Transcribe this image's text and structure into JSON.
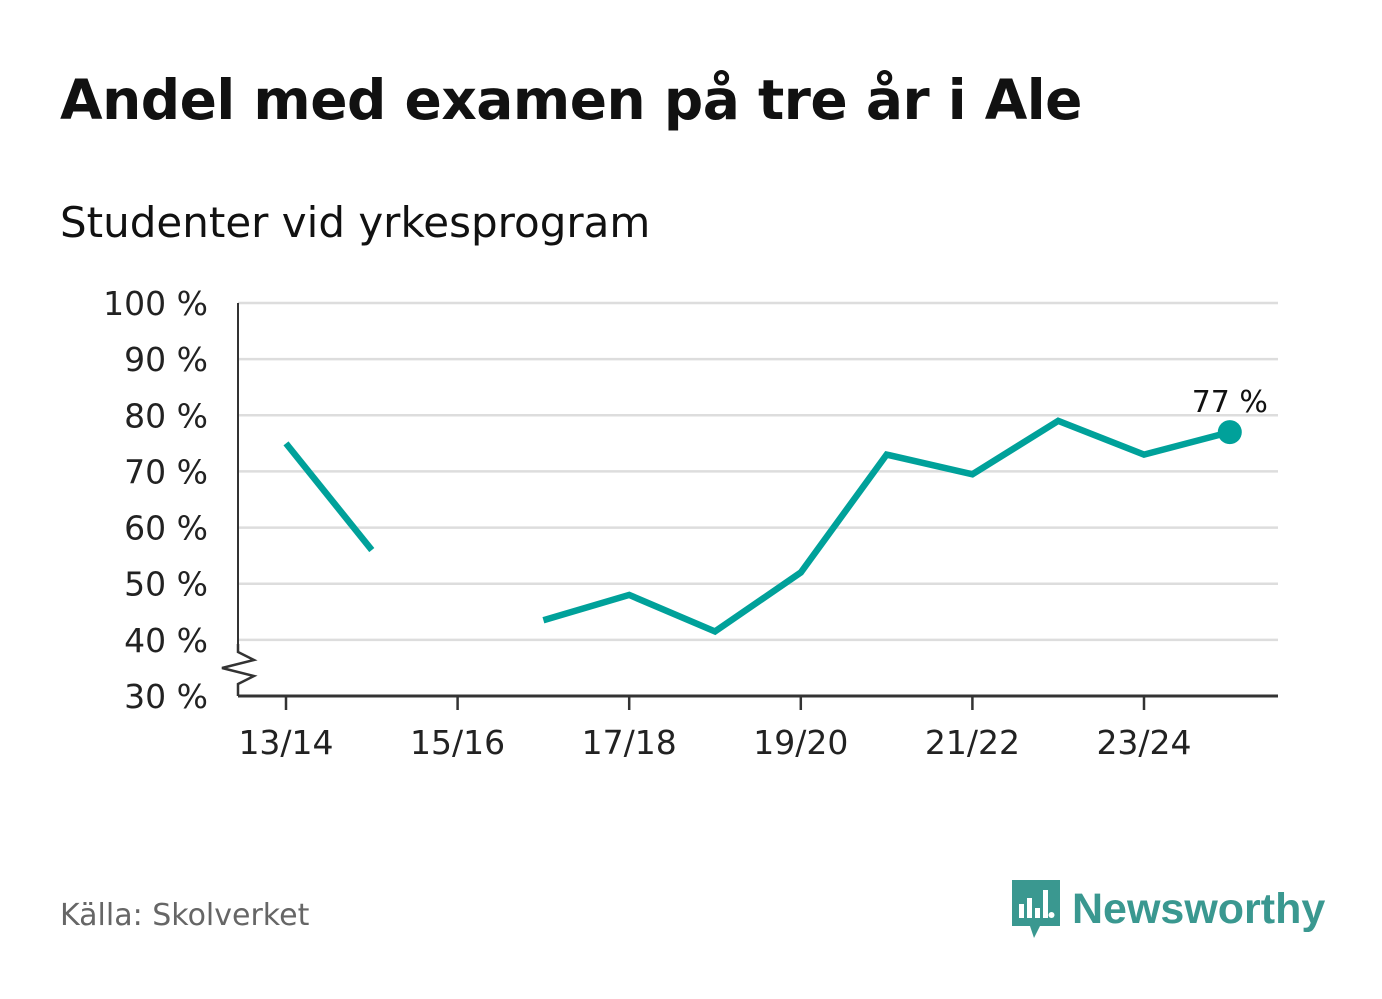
{
  "chart_data": {
    "type": "line",
    "title": "Andel med examen på tre år i Ale",
    "subtitle": "Studenter vid yrkesprogram",
    "xlabel": "",
    "ylabel": "",
    "categories": [
      "13/14",
      "14/15",
      "15/16",
      "16/17",
      "17/18",
      "18/19",
      "19/20",
      "20/21",
      "21/22",
      "22/23",
      "23/24",
      "24/25"
    ],
    "x_tick_labels": [
      "13/14",
      "15/16",
      "17/18",
      "19/20",
      "21/22",
      "23/24"
    ],
    "y_ticks": [
      30,
      40,
      50,
      60,
      70,
      80,
      90,
      100
    ],
    "y_tick_labels": [
      "30 %",
      "40 %",
      "50 %",
      "60 %",
      "70 %",
      "80 %",
      "90 %",
      "100 %"
    ],
    "ylim": [
      30,
      100
    ],
    "y_axis_break": true,
    "grid": true,
    "series": [
      {
        "name": "Studenter vid yrkesprogram",
        "color": "#00a19a",
        "values": [
          75,
          56,
          null,
          43.5,
          48,
          41.5,
          52,
          73,
          69.5,
          79,
          73,
          77
        ]
      }
    ],
    "annotations": [
      {
        "category": "24/25",
        "value": 77,
        "text": "77 %"
      }
    ]
  },
  "footer": {
    "source": "Källa: Skolverket",
    "brand": "Newsworthy",
    "brand_color": "#3a9890"
  }
}
